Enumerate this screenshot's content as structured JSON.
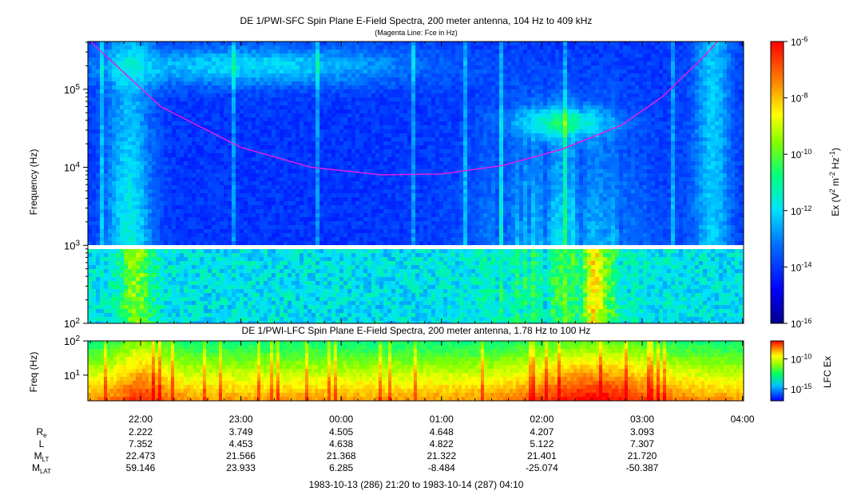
{
  "chart_data": [
    {
      "type": "heatmap",
      "title": "DE 1/PWI-SFC  Spin Plane E-Field Spectra, 200 meter antenna, 104 Hz to 409 kHz",
      "subtitle": "(Magenta Line: Fce in Hz)",
      "ylabel": "Frequency (Hz)",
      "y_scale": "log",
      "ylim": [
        100,
        409000
      ],
      "y_ticks": [
        {
          "value": 100,
          "base": "10",
          "exp": "2"
        },
        {
          "value": 1000,
          "base": "10",
          "exp": "3"
        },
        {
          "value": 10000,
          "base": "10",
          "exp": "4"
        },
        {
          "value": 100000,
          "base": "10",
          "exp": "5"
        }
      ],
      "gap_band_hz": [
        900,
        1000
      ],
      "colorbar": {
        "label_parts": [
          "Ex (V",
          "2",
          " m",
          "-2",
          " Hz",
          "-1",
          ")"
        ],
        "scale": "log",
        "range": [
          1e-16,
          1e-06
        ],
        "ticks": [
          {
            "value": 1e-06,
            "base": "10",
            "exp": "-6"
          },
          {
            "value": 1e-08,
            "base": "10",
            "exp": "-8"
          },
          {
            "value": 1e-10,
            "base": "10",
            "exp": "-10"
          },
          {
            "value": 1e-12,
            "base": "10",
            "exp": "-12"
          },
          {
            "value": 1e-14,
            "base": "10",
            "exp": "-14"
          },
          {
            "value": 1e-16,
            "base": "10",
            "exp": "-16"
          }
        ]
      },
      "fce_line": {
        "color": "#e020e0",
        "points": [
          [
            21.5,
            409000
          ],
          [
            22.2,
            60000
          ],
          [
            23.0,
            18000
          ],
          [
            23.7,
            10000
          ],
          [
            0.4,
            8000
          ],
          [
            1.0,
            8200
          ],
          [
            1.6,
            10500
          ],
          [
            2.2,
            17000
          ],
          [
            2.8,
            35000
          ],
          [
            3.2,
            80000
          ],
          [
            3.6,
            250000
          ],
          [
            3.75,
            409000
          ]
        ]
      }
    },
    {
      "type": "heatmap",
      "title": "DE 1/PWI-LFC  Spin Plane E-Field Spectra, 200 meter antenna, 1.78 Hz to 100 Hz",
      "ylabel": "Freq (Hz)",
      "y_scale": "log",
      "ylim": [
        1.78,
        100
      ],
      "y_ticks": [
        {
          "value": 10,
          "base": "10",
          "exp": "1"
        },
        {
          "value": 100,
          "base": "10",
          "exp": "2"
        }
      ],
      "colorbar": {
        "label": "LFC Ex",
        "scale": "log",
        "range": [
          1e-17,
          1e-07
        ],
        "ticks": [
          {
            "value": 1e-10,
            "base": "10",
            "exp": "-10"
          },
          {
            "value": 1e-15,
            "base": "10",
            "exp": "-15"
          }
        ]
      }
    }
  ],
  "time_axis": {
    "ticks": [
      "22:00",
      "23:00",
      "00:00",
      "01:00",
      "02:00",
      "03:00",
      "04:00"
    ]
  },
  "ephemeris": {
    "rows": [
      {
        "label": "R",
        "sub": "e",
        "values": [
          "2.222",
          "3.749",
          "4.505",
          "4.648",
          "4.207",
          "3.093"
        ]
      },
      {
        "label": "L",
        "sub": "",
        "values": [
          "7.352",
          "4.453",
          "4.638",
          "4.822",
          "5.122",
          "7.307"
        ]
      },
      {
        "label": "M",
        "sub": "LT",
        "values": [
          "22.473",
          "21.566",
          "21.368",
          "21.322",
          "21.401",
          "21.720"
        ]
      },
      {
        "label": "M",
        "sub": "LAT",
        "values": [
          "59.146",
          "23.933",
          "6.285",
          "-8.484",
          "-25.074",
          "-50.387"
        ]
      }
    ]
  },
  "time_range": "1983-10-13 (286) 21:20 to 1983-10-14 (287) 04:10"
}
